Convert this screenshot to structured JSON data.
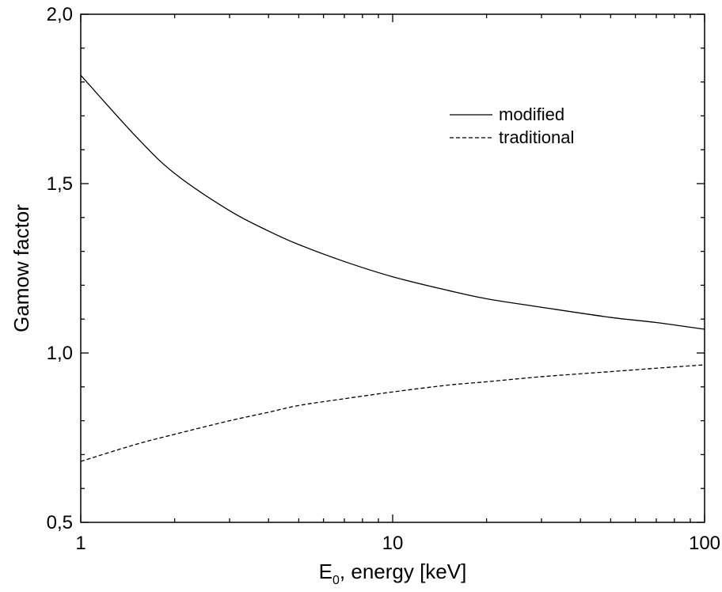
{
  "chart_data": {
    "type": "line",
    "title": "",
    "xlabel_main": "E",
    "xlabel_sub": "0",
    "xlabel_rest": ", energy [keV]",
    "ylabel": "Gamow factor",
    "xscale": "log",
    "xlim": [
      1,
      100
    ],
    "ylim": [
      0.5,
      2.0
    ],
    "grid": false,
    "legend_position": "top-right",
    "x_ticks": [
      {
        "value": 1,
        "label": "1"
      },
      {
        "value": 10,
        "label": "10"
      },
      {
        "value": 100,
        "label": "100"
      }
    ],
    "y_ticks": [
      {
        "value": 0.5,
        "label": "0,5"
      },
      {
        "value": 1.0,
        "label": "1,0"
      },
      {
        "value": 1.5,
        "label": "1,5"
      },
      {
        "value": 2.0,
        "label": "2,0"
      }
    ],
    "series": [
      {
        "name": "modified",
        "style": "solid",
        "color": "#000000",
        "x": [
          1,
          1.5,
          2,
          3,
          4,
          5,
          7,
          10,
          15,
          20,
          30,
          50,
          70,
          100
        ],
        "y": [
          1.82,
          1.64,
          1.53,
          1.42,
          1.36,
          1.32,
          1.27,
          1.225,
          1.185,
          1.16,
          1.135,
          1.105,
          1.09,
          1.07
        ]
      },
      {
        "name": "traditional",
        "style": "dashed",
        "color": "#000000",
        "x": [
          1,
          1.5,
          2,
          3,
          4,
          5,
          7,
          10,
          15,
          20,
          30,
          50,
          70,
          100
        ],
        "y": [
          0.68,
          0.73,
          0.76,
          0.8,
          0.825,
          0.845,
          0.865,
          0.885,
          0.905,
          0.915,
          0.93,
          0.945,
          0.955,
          0.965
        ]
      }
    ]
  }
}
